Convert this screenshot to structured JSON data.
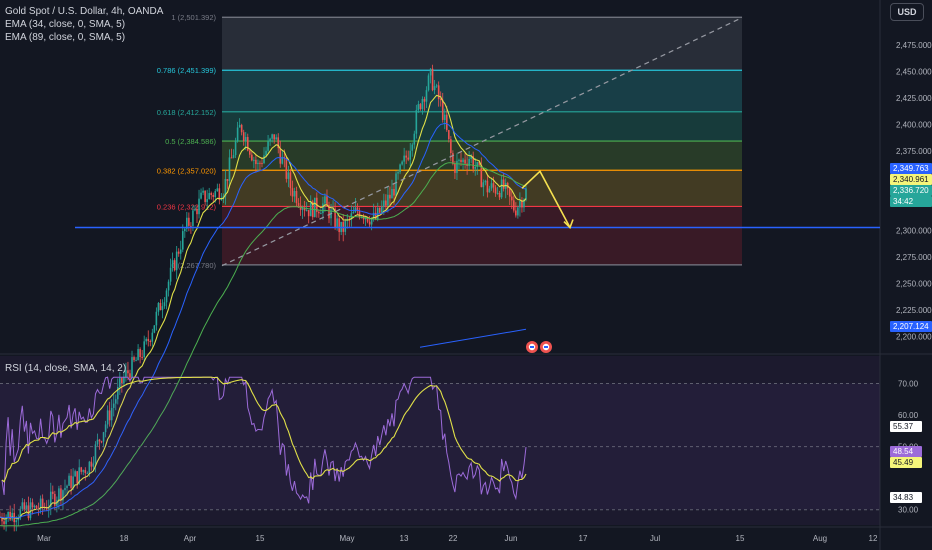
{
  "header": {
    "symbol_line": "Gold Spot / U.S. Dollar, 4h, OANDA",
    "ema1": "EMA (34, close, 0, SMA, 5)",
    "ema2": "EMA (89, close, 0, SMA, 5)",
    "currency_button": "USD"
  },
  "rsi_legend": "RSI (14, close, SMA, 14, 2)",
  "colors": {
    "background": "#131722",
    "up": "#26a69a",
    "down": "#ef5350",
    "ema34": "#e0e048",
    "ema89": "#2962ff",
    "ema_long": "#4caf50",
    "rsi": "#9c6bd9",
    "rsi_ma": "#e0e048",
    "support_line": "#2962ff"
  },
  "chart_data": [
    {
      "type": "candlestick",
      "title": "Gold Spot / U.S. Dollar, 4h, OANDA",
      "price_axis_ticks": [
        "2,475.000",
        "2,450.000",
        "2,425.000",
        "2,400.000",
        "2,375.000",
        "2,350.000",
        "2,300.000",
        "2,275.000",
        "2,250.000",
        "2,225.000",
        "2,200.000"
      ],
      "ylim": [
        2195,
        2512
      ],
      "time_axis_ticks": [
        "Mar",
        "18",
        "Apr",
        "15",
        "May",
        "13",
        "22",
        "Jun",
        "17",
        "Jul",
        "15",
        "Aug",
        "12"
      ],
      "price_labels": [
        {
          "value": "2,349.763",
          "color": "#2962ff",
          "text_color": "#ffffff"
        },
        {
          "value": "2,340.961",
          "color": "#f5f57a",
          "text_color": "#131722"
        },
        {
          "value": "2,336.720",
          "color": "#26a69a",
          "text_color": "#ffffff"
        },
        {
          "value": "34:42",
          "color": "#26a69a",
          "text_color": "#ffffff"
        },
        {
          "value": "2,207.124",
          "color": "#2962ff",
          "text_color": "#ffffff"
        }
      ],
      "fibonacci": [
        {
          "ratio": "1",
          "price": 2501.392,
          "label": "1 (2,501.392)",
          "color": "#787b86"
        },
        {
          "ratio": "0.786",
          "price": 2451.399,
          "label": "0.786 (2,451.399)",
          "color": "#26c6da"
        },
        {
          "ratio": "0.618",
          "price": 2412.152,
          "label": "0.618 (2,412.152)",
          "color": "#26a69a"
        },
        {
          "ratio": "0.5",
          "price": 2384.586,
          "label": "0.5 (2,384.586)",
          "color": "#4caf50"
        },
        {
          "ratio": "0.382",
          "price": 2357.02,
          "label": "0.382 (2,357.020)",
          "color": "#ff9800"
        },
        {
          "ratio": "0.236",
          "price": 2322.912,
          "label": "0.236 (2,322.912)",
          "color": "#f23645"
        },
        {
          "ratio": "0",
          "price": 2267.78,
          "label": "0 (2,267.780)",
          "color": "#787b86"
        }
      ],
      "horizontal_line": {
        "price": 2303.0,
        "color": "#2962ff"
      },
      "projection_path_prices": [
        2340,
        2356,
        2303
      ],
      "price_path": [
        {
          "t": 0,
          "p": 2030
        },
        {
          "t": 8,
          "p": 2040
        },
        {
          "t": 16,
          "p": 2080
        },
        {
          "t": 22,
          "p": 2160
        },
        {
          "t": 26,
          "p": 2190
        },
        {
          "t": 30,
          "p": 2250
        },
        {
          "t": 33,
          "p": 2300
        },
        {
          "t": 36,
          "p": 2330
        },
        {
          "t": 40,
          "p": 2340
        },
        {
          "t": 43,
          "p": 2400
        },
        {
          "t": 46,
          "p": 2360
        },
        {
          "t": 49,
          "p": 2390
        },
        {
          "t": 52,
          "p": 2340
        },
        {
          "t": 55,
          "p": 2320
        },
        {
          "t": 58,
          "p": 2325
        },
        {
          "t": 61,
          "p": 2300
        },
        {
          "t": 64,
          "p": 2320
        },
        {
          "t": 67,
          "p": 2310
        },
        {
          "t": 70,
          "p": 2335
        },
        {
          "t": 73,
          "p": 2375
        },
        {
          "t": 75,
          "p": 2420
        },
        {
          "t": 77,
          "p": 2445
        },
        {
          "t": 79,
          "p": 2415
        },
        {
          "t": 81,
          "p": 2360
        },
        {
          "t": 84,
          "p": 2370
        },
        {
          "t": 87,
          "p": 2340
        },
        {
          "t": 90,
          "p": 2340
        },
        {
          "t": 92,
          "p": 2320
        },
        {
          "t": 94,
          "p": 2337
        }
      ]
    },
    {
      "type": "line",
      "title": "RSI (14, close, SMA, 14, 2)",
      "ylim": [
        28,
        73
      ],
      "price_axis_ticks": [
        "70.00",
        "60.00",
        "50.00",
        "30.00"
      ],
      "bands": [
        70,
        50,
        30
      ],
      "value_labels": [
        {
          "value": "55.37",
          "color": "#ffffff",
          "text_color": "#131722"
        },
        {
          "value": "48.54",
          "color": "#9c6bd9",
          "text_color": "#ffffff"
        },
        {
          "value": "45.49",
          "color": "#f5f57a",
          "text_color": "#131722"
        },
        {
          "value": "34.83",
          "color": "#ffffff",
          "text_color": "#131722"
        }
      ]
    }
  ]
}
